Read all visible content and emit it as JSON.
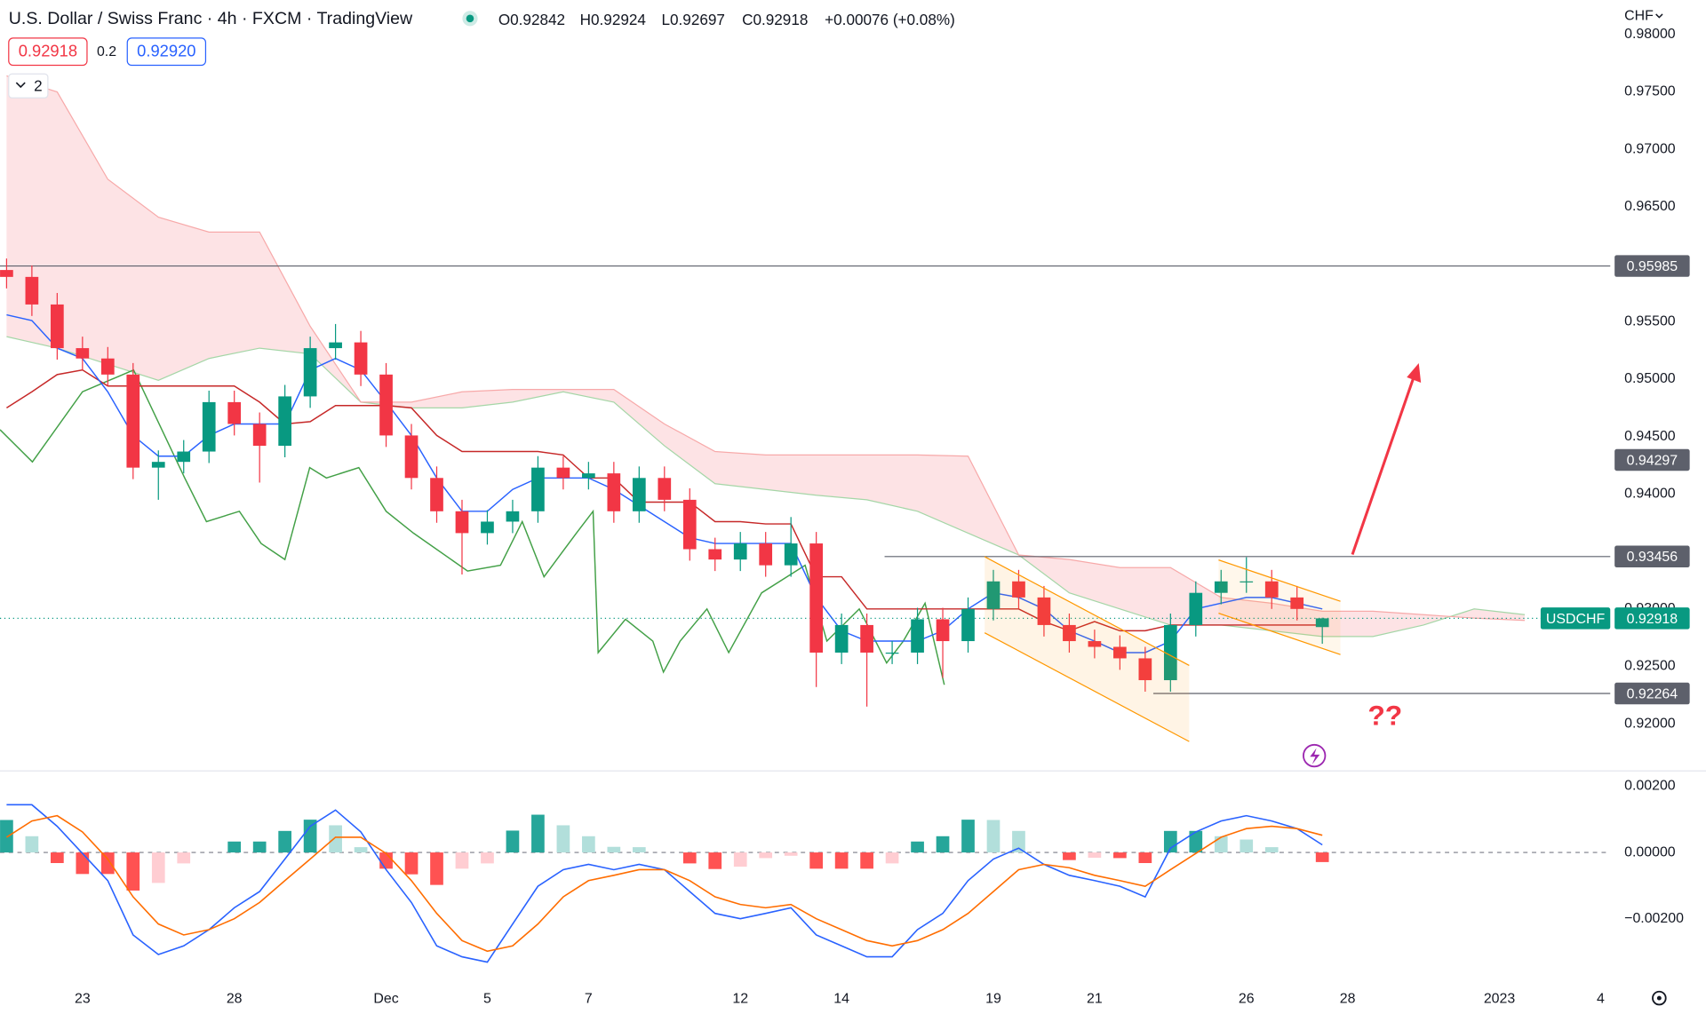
{
  "chart_data": [
    {
      "type": "candlestick",
      "title": "U.S. Dollar / Swiss Franc · 4h · FXCM · TradingView",
      "ohlc_legend": [
        "O0.92842",
        "H0.92924",
        "L0.92697",
        "C0.92918",
        "+0.00076 (+0.08%)"
      ],
      "toolbar": {
        "bid": "0.92918",
        "spread": "0.2",
        "ask": "0.92920",
        "indicators": "2",
        "currency": "CHF"
      },
      "annotations": [
        "??"
      ],
      "up_color": "#089981",
      "down_color": "#f23645",
      "xlim": [
        -1.63,
        30.19
      ],
      "ylim": [
        0.916,
        0.983
      ],
      "grid": false,
      "xticks": [
        {
          "value": 0,
          "label": "23"
        },
        {
          "value": 3,
          "label": "28"
        },
        {
          "value": 6,
          "label": "Dec"
        },
        {
          "value": 8,
          "label": "5"
        },
        {
          "value": 10,
          "label": "7"
        },
        {
          "value": 13,
          "label": "12"
        },
        {
          "value": 15,
          "label": "14"
        },
        {
          "value": 18,
          "label": "19"
        },
        {
          "value": 20,
          "label": "21"
        },
        {
          "value": 23,
          "label": "26"
        },
        {
          "value": 25,
          "label": "28"
        },
        {
          "value": 28,
          "label": "2023"
        },
        {
          "value": 30,
          "label": "4"
        }
      ],
      "yticks": [
        {
          "value": 0.98,
          "label": "0.98000"
        },
        {
          "value": 0.975,
          "label": "0.97500"
        },
        {
          "value": 0.97,
          "label": "0.97000"
        },
        {
          "value": 0.965,
          "label": "0.96500"
        },
        {
          "value": 0.955,
          "label": "0.95500"
        },
        {
          "value": 0.95,
          "label": "0.95000"
        },
        {
          "value": 0.945,
          "label": "0.94500"
        },
        {
          "value": 0.94,
          "label": "0.94000"
        },
        {
          "value": 0.93,
          "label": "0.93000"
        },
        {
          "value": 0.925,
          "label": "0.92500"
        },
        {
          "value": 0.92,
          "label": "0.92000"
        }
      ],
      "x": [
        -1.5,
        -1,
        -0.5,
        0,
        0.5,
        1,
        1.5,
        2,
        2.5,
        3,
        3.5,
        4,
        4.5,
        5,
        5.5,
        6,
        6.5,
        7,
        7.5,
        8,
        8.5,
        9,
        9.5,
        10,
        10.5,
        11,
        11.5,
        12,
        12.5,
        13,
        13.5,
        14,
        14.5,
        15,
        15.5,
        16,
        16.5,
        17,
        17.5,
        18,
        18.5,
        19,
        19.5,
        20,
        20.5,
        21,
        21.5,
        22,
        22.5,
        23,
        23.5,
        24,
        24.5
      ],
      "open": [
        0.9595,
        0.9589,
        0.9565,
        0.9527,
        0.9518,
        0.9504,
        0.9423,
        0.9428,
        0.9437,
        0.948,
        0.9461,
        0.9442,
        0.9485,
        0.9527,
        0.9532,
        0.9504,
        0.9451,
        0.9414,
        0.9385,
        0.9366,
        0.9376,
        0.9385,
        0.9423,
        0.9414,
        0.9418,
        0.9385,
        0.9414,
        0.9395,
        0.9352,
        0.9343,
        0.9357,
        0.9338,
        0.9357,
        0.9262,
        0.9286,
        0.9262,
        0.9262,
        0.9291,
        0.9272,
        0.93,
        0.9324,
        0.931,
        0.9286,
        0.9272,
        0.9267,
        0.9257,
        0.9238,
        0.9286,
        0.9314,
        0.9324,
        0.9324,
        0.931,
        0.92842
      ],
      "high": [
        0.9605,
        0.9599,
        0.9575,
        0.9537,
        0.9528,
        0.9514,
        0.9438,
        0.9447,
        0.949,
        0.949,
        0.9471,
        0.9495,
        0.9537,
        0.9548,
        0.9542,
        0.9514,
        0.9461,
        0.9424,
        0.9395,
        0.9386,
        0.9395,
        0.9433,
        0.9433,
        0.9428,
        0.9428,
        0.9424,
        0.9424,
        0.9405,
        0.9362,
        0.9367,
        0.9367,
        0.938,
        0.9367,
        0.9296,
        0.9296,
        0.9272,
        0.9301,
        0.9301,
        0.931,
        0.9334,
        0.9334,
        0.932,
        0.9296,
        0.9282,
        0.9277,
        0.9267,
        0.9296,
        0.9324,
        0.9334,
        0.9345,
        0.9334,
        0.932,
        0.92924
      ],
      "low": [
        0.9579,
        0.9555,
        0.9517,
        0.9508,
        0.9494,
        0.9413,
        0.9395,
        0.9418,
        0.9427,
        0.9451,
        0.941,
        0.9432,
        0.9475,
        0.9517,
        0.9494,
        0.9441,
        0.9404,
        0.9375,
        0.933,
        0.9356,
        0.9366,
        0.9375,
        0.9404,
        0.9404,
        0.9375,
        0.9375,
        0.9385,
        0.9342,
        0.9333,
        0.9333,
        0.9328,
        0.9328,
        0.9232,
        0.9252,
        0.9215,
        0.9252,
        0.9252,
        0.924,
        0.9262,
        0.929,
        0.93,
        0.9276,
        0.9262,
        0.9257,
        0.9247,
        0.9228,
        0.9228,
        0.9276,
        0.9304,
        0.9314,
        0.93,
        0.929,
        0.92697
      ],
      "close": [
        0.9589,
        0.9565,
        0.9527,
        0.9518,
        0.9504,
        0.9423,
        0.9428,
        0.9437,
        0.948,
        0.9461,
        0.9442,
        0.9485,
        0.9527,
        0.9532,
        0.9504,
        0.9451,
        0.9414,
        0.9385,
        0.9366,
        0.9376,
        0.9385,
        0.9423,
        0.9414,
        0.9418,
        0.9385,
        0.9414,
        0.9395,
        0.9352,
        0.9343,
        0.9357,
        0.9338,
        0.9357,
        0.9262,
        0.9286,
        0.9262,
        0.9262,
        0.9291,
        0.9272,
        0.93,
        0.9324,
        0.931,
        0.9286,
        0.9272,
        0.9267,
        0.9257,
        0.9238,
        0.9286,
        0.9314,
        0.9324,
        0.9324,
        0.931,
        0.93,
        0.92918
      ],
      "cloud": {
        "fill": "rgba(242,54,69,0.14)",
        "a_color": "#a5d6a7",
        "b_color": "#f7a9a9",
        "x": [
          -1.5,
          -0.5,
          0.5,
          1.5,
          2.5,
          3.5,
          4.5,
          5.5,
          6.5,
          7.5,
          8.5,
          9.5,
          10.5,
          11.5,
          12.5,
          13.5,
          14.5,
          15.5,
          16.5,
          17.5,
          18.5,
          19.5,
          20.5,
          21.5,
          22.5,
          23.5,
          24.5,
          25.5,
          26.5,
          27.5,
          28.5
        ],
        "span_a": [
          0.9537,
          0.9527,
          0.9513,
          0.9499,
          0.9518,
          0.9527,
          0.9522,
          0.948,
          0.9475,
          0.9475,
          0.948,
          0.9489,
          0.948,
          0.9442,
          0.9409,
          0.9404,
          0.9399,
          0.9395,
          0.9385,
          0.9366,
          0.9347,
          0.9314,
          0.93,
          0.9286,
          0.9286,
          0.9281,
          0.9276,
          0.9276,
          0.9286,
          0.93,
          0.9295
        ],
        "span_b": [
          0.9764,
          0.975,
          0.9674,
          0.9641,
          0.9628,
          0.9628,
          0.9546,
          0.948,
          0.948,
          0.9489,
          0.9491,
          0.9491,
          0.9491,
          0.9461,
          0.9437,
          0.9434,
          0.9434,
          0.9434,
          0.9434,
          0.9433,
          0.9347,
          0.9343,
          0.9336,
          0.9336,
          0.931,
          0.9305,
          0.9298,
          0.9298,
          0.9295,
          0.9292,
          0.929
        ]
      },
      "lines": [
        {
          "color": "#43a047",
          "x": [
            -1.63,
            -0.99,
            0,
            1.01,
            2.02,
            2.45,
            3.1,
            3.53,
            4,
            4.49,
            4.82,
            5.46,
            6,
            6.54,
            7.61,
            8.26,
            8.69,
            9.12,
            9.76,
            10.09,
            10.19,
            10.73,
            11.27,
            11.48,
            11.81,
            12.34,
            12.77,
            13.42,
            14.28,
            14.71,
            15.35,
            15.89,
            16.22,
            16.65,
            17.03
          ],
          "values": [
            0.9456,
            0.9428,
            0.9489,
            0.9508,
            0.9414,
            0.9376,
            0.9385,
            0.9357,
            0.9343,
            0.9423,
            0.9414,
            0.9423,
            0.9385,
            0.9366,
            0.9333,
            0.9338,
            0.9376,
            0.9328,
            0.9366,
            0.9385,
            0.9262,
            0.9291,
            0.9272,
            0.9245,
            0.9272,
            0.93,
            0.9262,
            0.9314,
            0.9338,
            0.9272,
            0.93,
            0.9253,
            0.9272,
            0.9305,
            0.9234
          ]
        },
        {
          "color": "#c62828",
          "values": [
            0.9475,
            0.9489,
            0.9504,
            0.9508,
            0.9494,
            0.9494,
            0.9494,
            0.9494,
            0.9494,
            0.9494,
            0.948,
            0.9461,
            0.9463,
            0.9477,
            0.9477,
            0.9477,
            0.9475,
            0.9451,
            0.9437,
            0.9437,
            0.9437,
            0.9437,
            0.9434,
            0.9414,
            0.9414,
            0.9393,
            0.9393,
            0.9393,
            0.9376,
            0.9376,
            0.9374,
            0.9374,
            0.9328,
            0.9328,
            0.93,
            0.93,
            0.93,
            0.93,
            0.93,
            0.93,
            0.93,
            0.9289,
            0.9281,
            0.9289,
            0.9281,
            0.9281,
            0.9286,
            0.9286,
            0.9286,
            0.9286,
            0.9286,
            0.9286,
            0.9286
          ]
        },
        {
          "color": "#2962ff",
          "values": [
            0.9556,
            0.9551,
            0.9527,
            0.9518,
            0.9489,
            0.9451,
            0.9433,
            0.9433,
            0.9451,
            0.9461,
            0.9461,
            0.9461,
            0.9508,
            0.9518,
            0.9508,
            0.948,
            0.9451,
            0.9414,
            0.9385,
            0.9385,
            0.9404,
            0.9414,
            0.9414,
            0.9414,
            0.9404,
            0.939,
            0.9376,
            0.9362,
            0.9357,
            0.9357,
            0.9357,
            0.9357,
            0.931,
            0.9281,
            0.9272,
            0.9272,
            0.9272,
            0.9281,
            0.93,
            0.9314,
            0.931,
            0.93,
            0.9281,
            0.9272,
            0.9262,
            0.9262,
            0.9272,
            0.93,
            0.9305,
            0.931,
            0.931,
            0.9305,
            0.93
          ]
        }
      ],
      "levels": [
        {
          "value": 0.95985
        },
        {
          "value": 0.94297,
          "line": false
        },
        {
          "value": 0.93456,
          "from": 15.85
        },
        {
          "value": 0.92264,
          "from": 21.16
        }
      ],
      "level_color": "#5d606b",
      "last_price": {
        "symbol": "USDCHF",
        "value": 0.92918,
        "color": "#089981"
      }
    },
    {
      "type": "macd",
      "ylim": [
        -0.00397,
        0.00243
      ],
      "yticks": [
        {
          "value": 0.002,
          "label": "0.00200"
        },
        {
          "value": 0,
          "label": "0.00000"
        },
        {
          "value": -0.002,
          "label": "−0.00200"
        }
      ],
      "x": [
        -1.5,
        -1,
        -0.5,
        0,
        0.5,
        1,
        1.5,
        2,
        2.5,
        3,
        3.5,
        4,
        4.5,
        5,
        5.5,
        6,
        6.5,
        7,
        7.5,
        8,
        8.5,
        9,
        9.5,
        10,
        10.5,
        11,
        11.5,
        12,
        12.5,
        13,
        13.5,
        14,
        14.5,
        15,
        15.5,
        16,
        16.5,
        17,
        17.5,
        18,
        18.5,
        19,
        19.5,
        20,
        20.5,
        21,
        21.5,
        22,
        22.5,
        23,
        23.5,
        24,
        24.5
      ],
      "histogram": [
        0.00098,
        0.00049,
        -0.00032,
        -0.00065,
        -0.00065,
        -0.00115,
        -0.00092,
        -0.00033,
        0,
        0.00033,
        0.00033,
        0.00065,
        0.00099,
        0.00082,
        0.00016,
        -0.00049,
        -0.00066,
        -0.00098,
        -0.00049,
        -0.00033,
        0.00066,
        0.00114,
        0.00082,
        0.00049,
        0.00017,
        0.00016,
        0,
        -0.00033,
        -0.0005,
        -0.00043,
        -0.00017,
        -0.0001,
        -0.00049,
        -0.00049,
        -0.00049,
        -0.00033,
        0.00033,
        0.00049,
        0.00099,
        0.00098,
        0.00065,
        0,
        -0.00023,
        -0.00016,
        -0.00017,
        -0.00032,
        0.00065,
        0.00065,
        0.00049,
        0.00039,
        0.00016,
        0,
        -0.00029
      ],
      "hist_colors": {
        "pos_rising": "#26a69a",
        "pos_falling": "#b2dfdb",
        "neg_falling": "#ff5252",
        "neg_rising": "#ffcdd2"
      },
      "lines": [
        {
          "color": "#2962ff",
          "values": [
            0.00144,
            0.00144,
            0.00079,
            -3e-05,
            -0.00085,
            -0.00249,
            -0.00308,
            -0.00282,
            -0.00233,
            -0.00167,
            -0.00118,
            -0.0002,
            0.00079,
            0.00128,
            0.00062,
            -0.00052,
            -0.00151,
            -0.00282,
            -0.00315,
            -0.00331,
            -0.00216,
            -0.00102,
            -0.00052,
            -0.00036,
            -0.00052,
            -0.00036,
            -0.00052,
            -0.00118,
            -0.00184,
            -0.002,
            -0.00184,
            -0.00167,
            -0.00249,
            -0.00282,
            -0.00315,
            -0.00315,
            -0.00233,
            -0.00184,
            -0.00085,
            -0.0002,
            0.00013,
            -0.00036,
            -0.00069,
            -0.00085,
            -0.00102,
            -0.00134,
            0.00013,
            0.00062,
            0.00095,
            0.00111,
            0.00095,
            0.00072,
            0.00023
          ]
        },
        {
          "color": "#ff6d00",
          "values": [
            0.00046,
            0.00095,
            0.00111,
            0.00062,
            -0.0002,
            -0.00134,
            -0.00216,
            -0.00249,
            -0.00233,
            -0.002,
            -0.00151,
            -0.00085,
            -0.0002,
            0.00046,
            0.00046,
            -3e-05,
            -0.00085,
            -0.00184,
            -0.00266,
            -0.00298,
            -0.00282,
            -0.00216,
            -0.00134,
            -0.00085,
            -0.00069,
            -0.00052,
            -0.00052,
            -0.00085,
            -0.00134,
            -0.00157,
            -0.00167,
            -0.00157,
            -0.002,
            -0.00233,
            -0.00266,
            -0.00282,
            -0.00266,
            -0.00233,
            -0.00184,
            -0.00118,
            -0.00052,
            -0.00036,
            -0.00046,
            -0.00069,
            -0.00085,
            -0.00102,
            -0.00052,
            -3e-05,
            0.00046,
            0.00072,
            0.00079,
            0.00072,
            0.00052
          ]
        }
      ]
    }
  ]
}
